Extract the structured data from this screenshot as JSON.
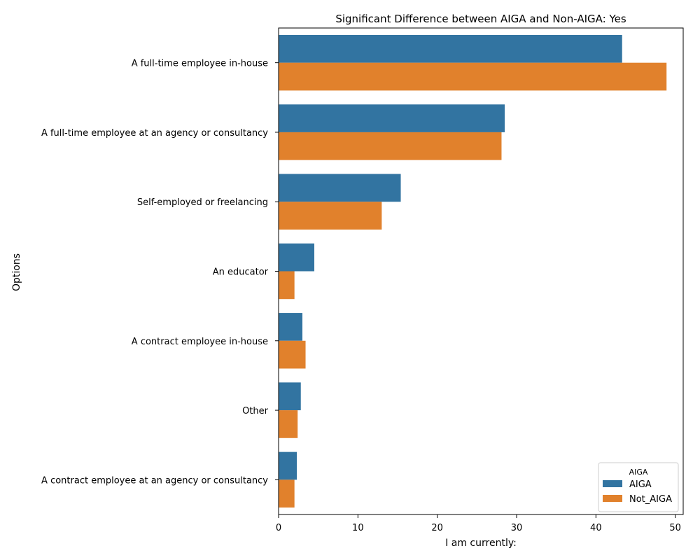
{
  "chart_data": {
    "type": "bar",
    "orientation": "horizontal",
    "title": "Significant Difference between AIGA and Non-AIGA: Yes",
    "xlabel": "I am currently:",
    "ylabel": "Options",
    "xlim": [
      0,
      51
    ],
    "xticks": [
      0,
      10,
      20,
      30,
      40,
      50
    ],
    "grid": false,
    "categories": [
      "A full-time employee in-house",
      "A full-time employee at an agency or consultancy",
      "Self-employed or freelancing",
      "An educator",
      "A contract employee in-house",
      "Other",
      "A contract employee at an agency or consultancy"
    ],
    "series": [
      {
        "name": "AIGA",
        "color": "#3274a1",
        "values": [
          43.3,
          28.5,
          15.4,
          4.5,
          3.0,
          2.8,
          2.3
        ]
      },
      {
        "name": "Not_AIGA",
        "color": "#e1812c",
        "values": [
          48.9,
          28.1,
          13.0,
          2.0,
          3.4,
          2.4,
          2.0
        ]
      }
    ],
    "legend": {
      "title": "AIGA",
      "placement": "lower-right"
    }
  }
}
